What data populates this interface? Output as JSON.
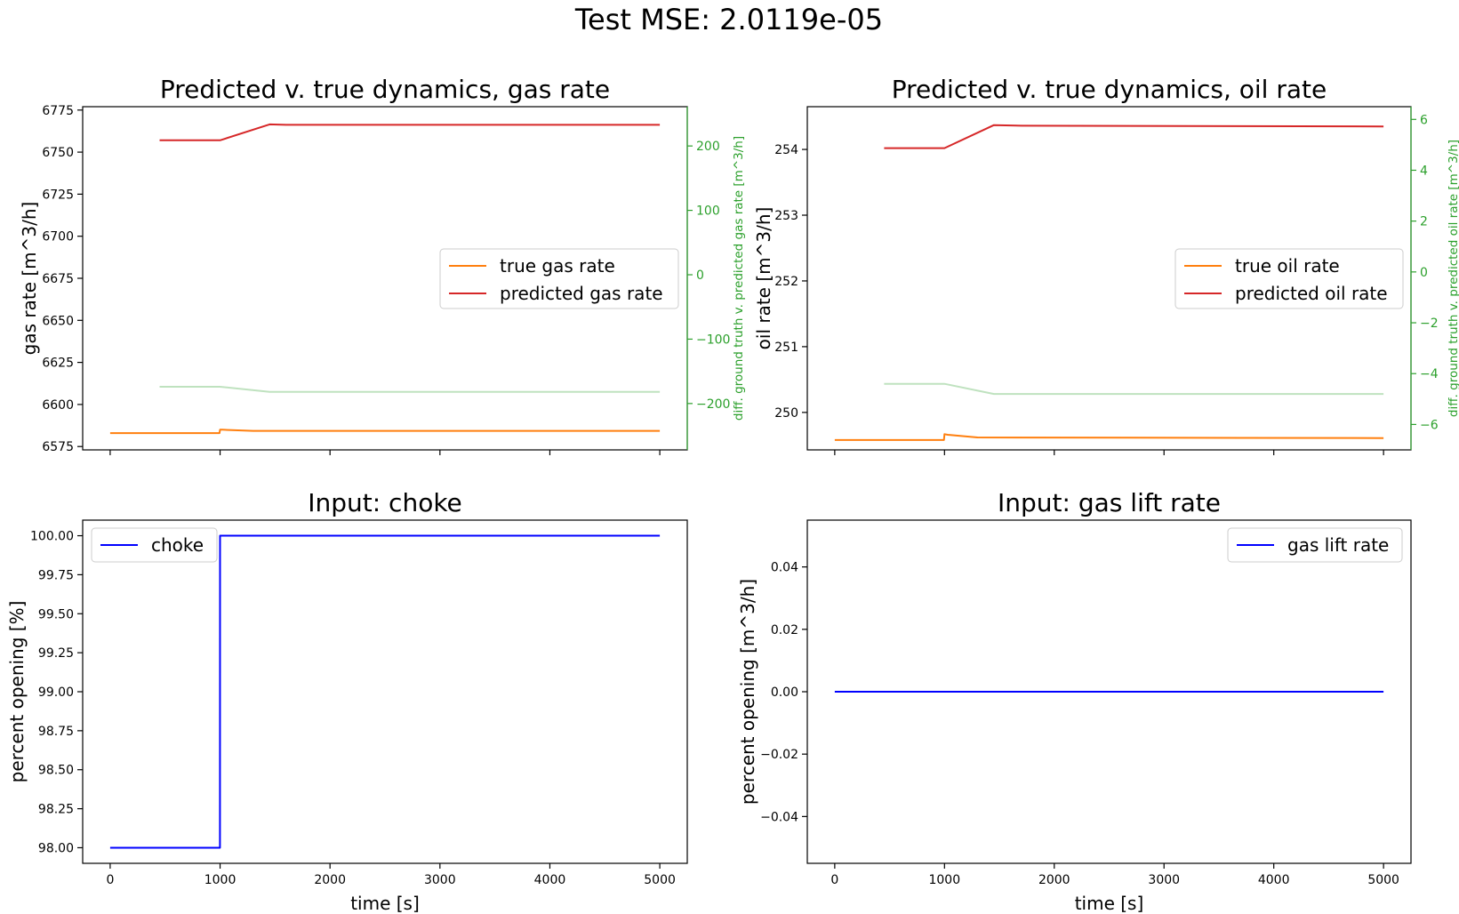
{
  "figure": {
    "suptitle": "Test MSE: 2.0119e-05"
  },
  "colors": {
    "true_series": "#ff7f0e",
    "pred_series": "#d62728",
    "diff_series": "#2ca02c",
    "input_series": "#0000ff",
    "axis": "#000000"
  },
  "chart_data": [
    {
      "id": "gas",
      "type": "line",
      "title": "Predicted v. true dynamics, gas rate",
      "xlabel": "",
      "ylabel": "gas rate [m^3/h]",
      "ylabel_right": "diff. ground truth v. predicted gas rate [m^3/h]",
      "xlim": [
        -250,
        5250
      ],
      "ylim": [
        6573,
        6777
      ],
      "ylim_right": [
        -272,
        261
      ],
      "xticks": [
        0,
        1000,
        2000,
        3000,
        4000,
        5000
      ],
      "xtick_labels_visible": false,
      "yticks": [
        6575,
        6600,
        6625,
        6650,
        6675,
        6700,
        6725,
        6750,
        6775
      ],
      "ytick_labels": [
        "6575",
        "6600",
        "6625",
        "6650",
        "6675",
        "6700",
        "6725",
        "6750",
        "6775"
      ],
      "yticks_right": [
        -200,
        -100,
        0,
        100,
        200
      ],
      "ytick_labels_right": [
        "−200",
        "−100",
        "0",
        "100",
        "200"
      ],
      "legend": {
        "position": "center-right",
        "entries": [
          "true gas rate",
          "predicted gas rate"
        ]
      },
      "grid": false,
      "series": [
        {
          "name": "true gas rate",
          "axis": "left",
          "color": "#ff7f0e",
          "x": [
            0,
            995,
            1000,
            1020,
            1300,
            5000
          ],
          "y": [
            6583,
            6583,
            6585,
            6585,
            6584.3,
            6584.3
          ]
        },
        {
          "name": "predicted gas rate",
          "axis": "left",
          "color": "#d62728",
          "x": [
            450,
            1000,
            1450,
            1600,
            5000
          ],
          "y": [
            6757,
            6757,
            6766.5,
            6766.2,
            6766.2
          ]
        },
        {
          "name": "",
          "axis": "right",
          "color": "#2ca02c",
          "opacity": 0.3,
          "x": [
            450,
            1000,
            1450,
            5000
          ],
          "y": [
            -174,
            -174,
            -182,
            -182
          ]
        }
      ]
    },
    {
      "id": "oil",
      "type": "line",
      "title": "Predicted v. true dynamics, oil rate",
      "xlabel": "",
      "ylabel": "oil rate [m^3/h]",
      "ylabel_right": "diff. ground truth v. predicted oil rate [m^3/h]",
      "xlim": [
        -250,
        5250
      ],
      "ylim": [
        249.43,
        254.65
      ],
      "ylim_right": [
        -7,
        6.5
      ],
      "xticks": [
        0,
        1000,
        2000,
        3000,
        4000,
        5000
      ],
      "xtick_labels_visible": false,
      "yticks": [
        250,
        251,
        252,
        253,
        254
      ],
      "ytick_labels": [
        "250",
        "251",
        "252",
        "253",
        "254"
      ],
      "yticks_right": [
        -6,
        -4,
        -2,
        0,
        2,
        4,
        6
      ],
      "ytick_labels_right": [
        "−6",
        "−4",
        "−2",
        "0",
        "2",
        "4",
        "6"
      ],
      "legend": {
        "position": "center-right",
        "entries": [
          "true oil rate",
          "predicted oil rate"
        ]
      },
      "grid": false,
      "series": [
        {
          "name": "true oil rate",
          "axis": "left",
          "color": "#ff7f0e",
          "x": [
            0,
            995,
            1000,
            1030,
            1300,
            5000
          ],
          "y": [
            249.58,
            249.58,
            249.67,
            249.66,
            249.62,
            249.61
          ]
        },
        {
          "name": "predicted oil rate",
          "axis": "left",
          "color": "#d62728",
          "x": [
            450,
            1000,
            1450,
            1700,
            5000
          ],
          "y": [
            254.02,
            254.02,
            254.37,
            254.36,
            254.35
          ]
        },
        {
          "name": "",
          "axis": "right",
          "color": "#2ca02c",
          "opacity": 0.3,
          "x": [
            450,
            1000,
            1450,
            5000
          ],
          "y": [
            -4.4,
            -4.4,
            -4.8,
            -4.8
          ]
        }
      ]
    },
    {
      "id": "choke",
      "type": "line",
      "title": "Input: choke",
      "xlabel": "time [s]",
      "ylabel": "percent opening [%]",
      "xlim": [
        -250,
        5250
      ],
      "ylim": [
        97.9,
        100.1
      ],
      "xticks": [
        0,
        1000,
        2000,
        3000,
        4000,
        5000
      ],
      "xtick_labels": [
        "0",
        "1000",
        "2000",
        "3000",
        "4000",
        "5000"
      ],
      "xtick_labels_visible": true,
      "yticks": [
        98.0,
        98.25,
        98.5,
        98.75,
        99.0,
        99.25,
        99.5,
        99.75,
        100.0
      ],
      "ytick_labels": [
        "98.00",
        "98.25",
        "98.50",
        "98.75",
        "99.00",
        "99.25",
        "99.50",
        "99.75",
        "100.00"
      ],
      "legend": {
        "position": "top-left",
        "entries": [
          "choke"
        ]
      },
      "grid": false,
      "series": [
        {
          "name": "choke",
          "axis": "left",
          "color": "#0000ff",
          "x": [
            0,
            999,
            1000,
            5000
          ],
          "y": [
            98.0,
            98.0,
            100.0,
            100.0
          ]
        }
      ]
    },
    {
      "id": "gaslift",
      "type": "line",
      "title": "Input: gas lift rate",
      "xlabel": "time [s]",
      "ylabel": "percent opening [m^3/h]",
      "xlim": [
        -250,
        5250
      ],
      "ylim": [
        -0.055,
        0.055
      ],
      "xticks": [
        0,
        1000,
        2000,
        3000,
        4000,
        5000
      ],
      "xtick_labels": [
        "0",
        "1000",
        "2000",
        "3000",
        "4000",
        "5000"
      ],
      "xtick_labels_visible": true,
      "yticks": [
        -0.04,
        -0.02,
        0.0,
        0.02,
        0.04
      ],
      "ytick_labels": [
        "−0.04",
        "−0.02",
        "0.00",
        "0.02",
        "0.04"
      ],
      "legend": {
        "position": "top-right",
        "entries": [
          "gas lift rate"
        ]
      },
      "grid": false,
      "series": [
        {
          "name": "gas lift rate",
          "axis": "left",
          "color": "#0000ff",
          "x": [
            0,
            5000
          ],
          "y": [
            0,
            0
          ]
        }
      ]
    }
  ]
}
